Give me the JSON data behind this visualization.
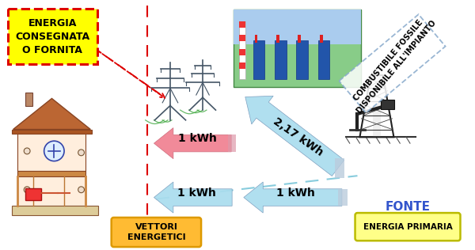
{
  "background_color": "#ffffff",
  "box1_text": "ENERGIA\nCONSEGNATA\nO FORNITA",
  "box1_bg": "#ffff00",
  "box1_border": "#dd0000",
  "box2_text": "VETTORI\nENERGETICI",
  "box2_bg": "#ffbb33",
  "box2_border": "#dd9900",
  "box3_text": "ENERGIA PRIMARIA",
  "box3_bg": "#ffff88",
  "box3_border": "#bbbb00",
  "box3_title": "FONTE",
  "fonte_color": "#3355cc",
  "label_arrow1": "1 kWh",
  "label_arrow2": "2,17 kWh",
  "label_arrow3_left": "1 kWh",
  "label_arrow3_right": "1 kWh",
  "label_fossil": "COMBUSTIBILE FOSSILE\nDISPONIBILE ALL'IMPIANTO",
  "arrow_pink_color": "#f08090",
  "arrow_blue_color": "#aaddee",
  "dashed_red_color": "#dd0000",
  "dashed_blue_color": "#88ccdd",
  "tower_color": "#445566",
  "green_wave_color": "#44aa44",
  "fig_width": 6.0,
  "fig_height": 3.16
}
